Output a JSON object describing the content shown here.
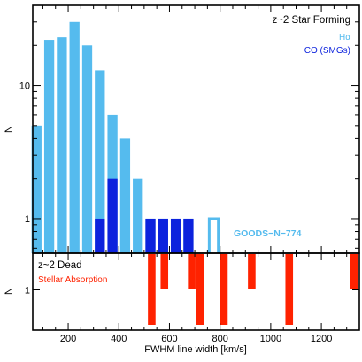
{
  "chart_data": [
    {
      "type": "bar",
      "title": "z~2 Star Forming",
      "ylabel": "N",
      "yscale": "log",
      "ylim": [
        0.55,
        40
      ],
      "xlim": [
        60,
        1350
      ],
      "bin_width": 50,
      "yticks": [
        {
          "value": 1,
          "label": "1"
        },
        {
          "value": 10,
          "label": "10"
        }
      ],
      "series": [
        {
          "name": "Hα",
          "color": "#55bbee",
          "bins": [
            {
              "x": 75,
              "value": 5
            },
            {
              "x": 125,
              "value": 22
            },
            {
              "x": 175,
              "value": 23
            },
            {
              "x": 225,
              "value": 30
            },
            {
              "x": 275,
              "value": 20
            },
            {
              "x": 325,
              "value": 13
            },
            {
              "x": 375,
              "value": 6
            },
            {
              "x": 425,
              "value": 4
            },
            {
              "x": 475,
              "value": 2
            },
            {
              "x": 525,
              "value": 1
            },
            {
              "x": 575,
              "value": 1
            },
            {
              "x": 625,
              "value": 1
            },
            {
              "x": 675,
              "value": 1
            }
          ]
        },
        {
          "name": "CO (SMGs)",
          "color": "#0c22dd",
          "bins": [
            {
              "x": 325,
              "value": 1
            },
            {
              "x": 375,
              "value": 2
            },
            {
              "x": 525,
              "value": 1
            },
            {
              "x": 575,
              "value": 1
            },
            {
              "x": 625,
              "value": 1
            },
            {
              "x": 675,
              "value": 1
            }
          ]
        }
      ],
      "annotation": {
        "label": "GOODS−N−774",
        "x": 775,
        "value": 1,
        "color": "#55bbee"
      }
    },
    {
      "type": "bar",
      "title": "z~2 Dead",
      "ylabel": "N",
      "xlabel": "FWHM line width [km/s]",
      "xlim": [
        60,
        1350
      ],
      "ylim": [
        0,
        2
      ],
      "yticks": [
        {
          "value": 1,
          "label": "1"
        }
      ],
      "xticks": [
        200,
        400,
        600,
        800,
        1000,
        1200
      ],
      "series": [
        {
          "name": "Stellar Absorption",
          "color": "#ff2200",
          "bar_width": 30,
          "bins": [
            {
              "x": 530,
              "value": 1
            },
            {
              "x": 580,
              "value": 1
            },
            {
              "x": 688,
              "value": 1
            },
            {
              "x": 720,
              "value": 1
            },
            {
              "x": 815,
              "value": 1
            },
            {
              "x": 925,
              "value": 1
            },
            {
              "x": 1073,
              "value": 1
            },
            {
              "x": 1330,
              "value": 1
            }
          ]
        }
      ]
    }
  ]
}
